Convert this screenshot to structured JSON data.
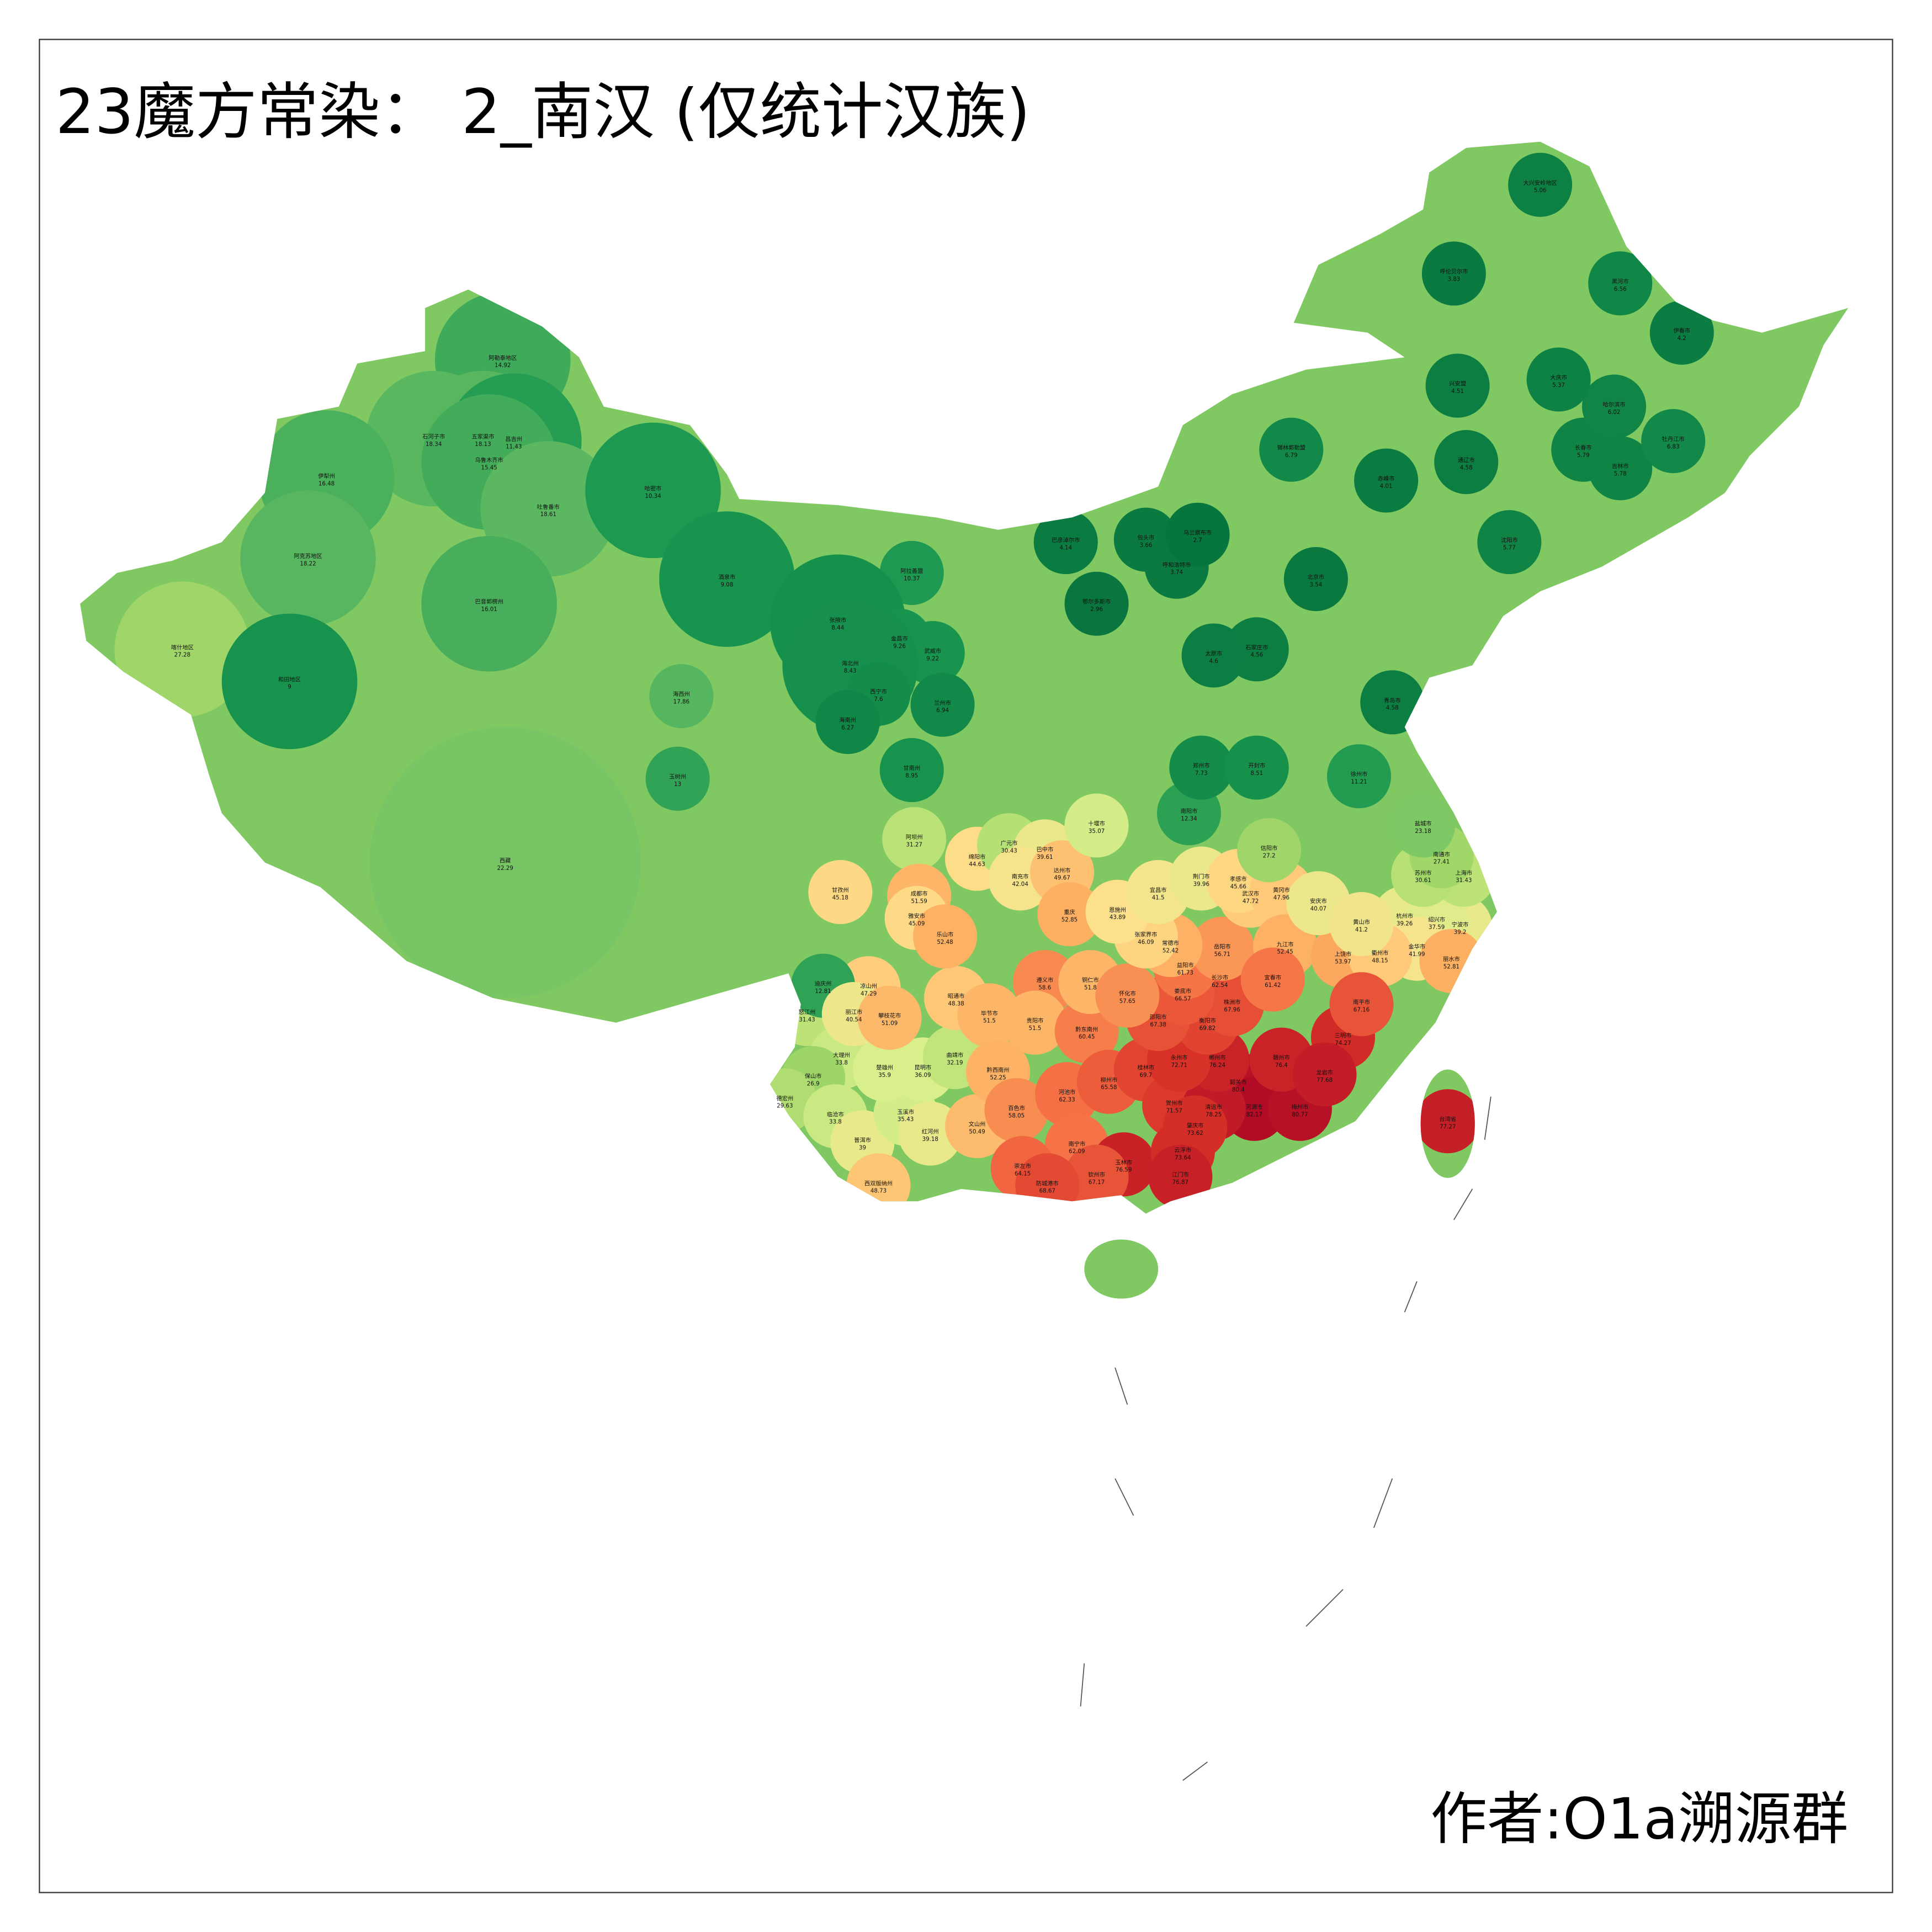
{
  "map": {
    "title": "23魔方常染： 2_南汉 (仅统计汉族)",
    "author": "作者:O1a溯源群",
    "colormap": "RdYlGn_r",
    "regions": [
      {
        "name": "阿勒泰地区",
        "value": 14.92
      },
      {
        "name": "石河子市",
        "value": 18.34
      },
      {
        "name": "五家渠市",
        "value": 18.13
      },
      {
        "name": "昌吉州",
        "value": 11.43
      },
      {
        "name": "乌鲁木齐市",
        "value": 15.45
      },
      {
        "name": "伊犁州",
        "value": 16.48
      },
      {
        "name": "吐鲁番市",
        "value": 18.61
      },
      {
        "name": "哈密市",
        "value": 10.34
      },
      {
        "name": "巴音郭楞州",
        "value": 16.01
      },
      {
        "name": "阿克苏地区",
        "value": 18.22
      },
      {
        "name": "喀什地区",
        "value": 27.28
      },
      {
        "name": "和田地区",
        "value": 9
      },
      {
        "name": "西藏",
        "value": 22.29
      },
      {
        "name": "玉树州",
        "value": 13
      },
      {
        "name": "海西州",
        "value": 17.86
      },
      {
        "name": "阿拉善盟",
        "value": 10.37
      },
      {
        "name": "酒泉市",
        "value": 9.08
      },
      {
        "name": "张掖市",
        "value": 8.44
      },
      {
        "name": "金昌市",
        "value": 9.26
      },
      {
        "name": "武威市",
        "value": 9.22
      },
      {
        "name": "海北州",
        "value": 8.43
      },
      {
        "name": "西宁市",
        "value": 7.6
      },
      {
        "name": "海南州",
        "value": 6.27
      },
      {
        "name": "兰州市",
        "value": 6.94
      },
      {
        "name": "甘南州",
        "value": 8.95
      },
      {
        "name": "阿坝州",
        "value": 31.27
      },
      {
        "name": "甘孜州",
        "value": 45.18
      },
      {
        "name": "凉山州",
        "value": 47.29
      },
      {
        "name": "怒江州",
        "value": 31.43
      },
      {
        "name": "迪庆州",
        "value": 12.81
      },
      {
        "name": "大理州",
        "value": 33.8
      },
      {
        "name": "丽江市",
        "value": 40.54
      },
      {
        "name": "保山市",
        "value": 26.9
      },
      {
        "name": "德宏州",
        "value": 29.63
      },
      {
        "name": "临沧市",
        "value": 33.8
      },
      {
        "name": "普洱市",
        "value": 39
      },
      {
        "name": "西双版纳州",
        "value": 48.73
      },
      {
        "name": "玉溪市",
        "value": 35.43
      },
      {
        "name": "红河州",
        "value": 39.18
      },
      {
        "name": "文山州",
        "value": 50.49
      },
      {
        "name": "昆明市",
        "value": 36.09
      },
      {
        "name": "楚雄州",
        "value": 35.9
      },
      {
        "name": "曲靖市",
        "value": 32.19
      },
      {
        "name": "攀枝花市",
        "value": 51.09
      },
      {
        "name": "昭通市",
        "value": 48.38
      },
      {
        "name": "成都市",
        "value": 51.59
      },
      {
        "name": "雅安市",
        "value": 45.09
      },
      {
        "name": "乐山市",
        "value": 52.48
      },
      {
        "name": "绵阳市",
        "value": 44.63
      },
      {
        "name": "广元市",
        "value": 30.43
      },
      {
        "name": "巴中市",
        "value": 39.61
      },
      {
        "name": "南充市",
        "value": 42.04
      },
      {
        "name": "达州市",
        "value": 49.67
      },
      {
        "name": "重庆",
        "value": 52.85
      },
      {
        "name": "遵义市",
        "value": 58.6
      },
      {
        "name": "贵阳市",
        "value": 51.5
      },
      {
        "name": "黔东南州",
        "value": 60.45
      },
      {
        "name": "铜仁市",
        "value": 51.8
      },
      {
        "name": "毕节市",
        "value": 51.5
      },
      {
        "name": "黔西南州",
        "value": 52.25
      },
      {
        "name": "百色市",
        "value": 58.05
      },
      {
        "name": "河池市",
        "value": 62.33
      },
      {
        "name": "南宁市",
        "value": 62.09
      },
      {
        "name": "崇左市",
        "value": 64.15
      },
      {
        "name": "柳州市",
        "value": 65.58
      },
      {
        "name": "桂林市",
        "value": 69.7
      },
      {
        "name": "贺州市",
        "value": 71.57
      },
      {
        "name": "玉林市",
        "value": 76.59
      },
      {
        "name": "钦州市",
        "value": 67.17
      },
      {
        "name": "防城港市",
        "value": 68.67
      },
      {
        "name": "台湾省",
        "value": 77.27
      },
      {
        "name": "韶关市",
        "value": 80.4
      },
      {
        "name": "河源市",
        "value": 82.17
      },
      {
        "name": "梅州市",
        "value": 80.77
      },
      {
        "name": "清远市",
        "value": 78.25
      },
      {
        "name": "肇庆市",
        "value": 73.62
      },
      {
        "name": "云浮市",
        "value": 73.64
      },
      {
        "name": "江门市",
        "value": 76.87
      },
      {
        "name": "赣州市",
        "value": 76.4
      },
      {
        "name": "郴州市",
        "value": 76.24
      },
      {
        "name": "永州市",
        "value": 72.71
      },
      {
        "name": "衡阳市",
        "value": 69.82
      },
      {
        "name": "长沙市",
        "value": 62.54
      },
      {
        "name": "株洲市",
        "value": 67.96
      },
      {
        "name": "邵阳市",
        "value": 67.38
      },
      {
        "name": "娄底市",
        "value": 66.57
      },
      {
        "name": "怀化市",
        "value": 57.65
      },
      {
        "name": "益阳市",
        "value": 61.73
      },
      {
        "name": "岳阳市",
        "value": 56.71
      },
      {
        "name": "常德市",
        "value": 52.42
      },
      {
        "name": "张家界市",
        "value": 46.09
      },
      {
        "name": "恩施州",
        "value": 43.89
      },
      {
        "name": "宜昌市",
        "value": 41.5
      },
      {
        "name": "荆门市",
        "value": 39.96
      },
      {
        "name": "武汉市",
        "value": 47.72
      },
      {
        "name": "孝感市",
        "value": 45.66
      },
      {
        "name": "黄冈市",
        "value": 47.96
      },
      {
        "name": "十堰市",
        "value": 35.07
      },
      {
        "name": "南阳市",
        "value": 12.34
      },
      {
        "name": "信阳市",
        "value": 27.2
      },
      {
        "name": "九江市",
        "value": 52.45
      },
      {
        "name": "上饶市",
        "value": 53.97
      },
      {
        "name": "宜春市",
        "value": 61.42
      },
      {
        "name": "杭州市",
        "value": 39.26
      },
      {
        "name": "宁波市",
        "value": 39.2
      },
      {
        "name": "绍兴市",
        "value": 37.59
      },
      {
        "name": "金华市",
        "value": 41.99
      },
      {
        "name": "丽水市",
        "value": 52.81
      },
      {
        "name": "衢州市",
        "value": 48.15
      },
      {
        "name": "三明市",
        "value": 74.27
      },
      {
        "name": "南平市",
        "value": 67.16
      },
      {
        "name": "龙岩市",
        "value": 77.68
      },
      {
        "name": "上海市",
        "value": 31.43
      },
      {
        "name": "苏州市",
        "value": 30.61
      },
      {
        "name": "南通市",
        "value": 27.41
      },
      {
        "name": "盐城市",
        "value": 23.18
      },
      {
        "name": "徐州市",
        "value": 11.21
      },
      {
        "name": "安庆市",
        "value": 40.07
      },
      {
        "name": "黄山市",
        "value": 41.2
      },
      {
        "name": "北京市",
        "value": 3.54
      },
      {
        "name": "石家庄市",
        "value": 4.56
      },
      {
        "name": "太原市",
        "value": 4.6
      },
      {
        "name": "呼和浩特市",
        "value": 3.74
      },
      {
        "name": "包头市",
        "value": 3.66
      },
      {
        "name": "乌兰察布市",
        "value": 2.7
      },
      {
        "name": "巴彦淖尔市",
        "value": 4.14
      },
      {
        "name": "鄂尔多斯市",
        "value": 2.96
      },
      {
        "name": "郑州市",
        "value": 7.73
      },
      {
        "name": "开封市",
        "value": 8.51
      },
      {
        "name": "青岛市",
        "value": 4.58
      },
      {
        "name": "沈阳市",
        "value": 5.77
      },
      {
        "name": "长春市",
        "value": 5.79
      },
      {
        "name": "哈尔滨市",
        "value": 6.02
      },
      {
        "name": "吉林市",
        "value": 5.78
      },
      {
        "name": "呼伦贝尔市",
        "value": 3.83
      },
      {
        "name": "大兴安岭地区",
        "value": 5.06
      },
      {
        "name": "黑河市",
        "value": 6.56
      },
      {
        "name": "伊春市",
        "value": 4.2
      },
      {
        "name": "牡丹江市",
        "value": 6.83
      },
      {
        "name": "通辽市",
        "value": 4.58
      },
      {
        "name": "赤峰市",
        "value": 4.01
      },
      {
        "name": "锡林郭勒盟",
        "value": 6.79
      },
      {
        "name": "大庆市",
        "value": 5.37
      },
      {
        "name": "兴安盟",
        "value": 4.51
      }
    ]
  }
}
